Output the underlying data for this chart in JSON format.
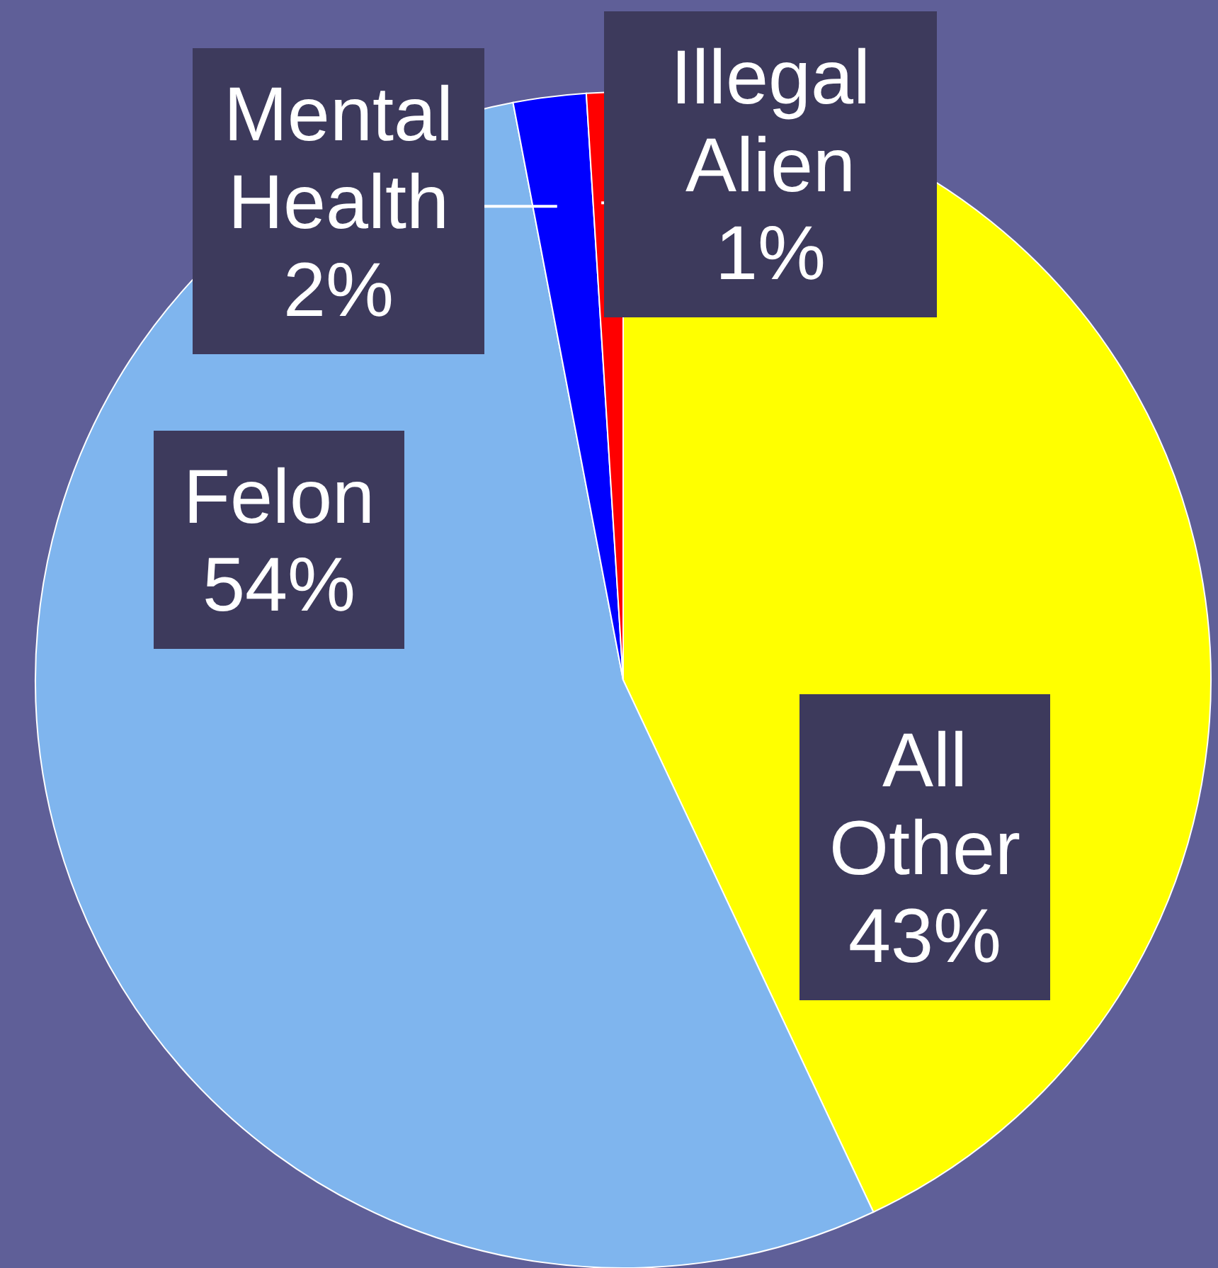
{
  "chart_data": {
    "type": "pie",
    "categories": [
      "All Other",
      "Felon",
      "Mental Health",
      "Illegal Alien"
    ],
    "values": [
      43,
      54,
      2,
      1
    ],
    "value_labels": [
      "43%",
      "54%",
      "2%",
      "1%"
    ],
    "colors": [
      "#ffff00",
      "#7fb5ee",
      "#0000ff",
      "#ff0000"
    ]
  }
}
